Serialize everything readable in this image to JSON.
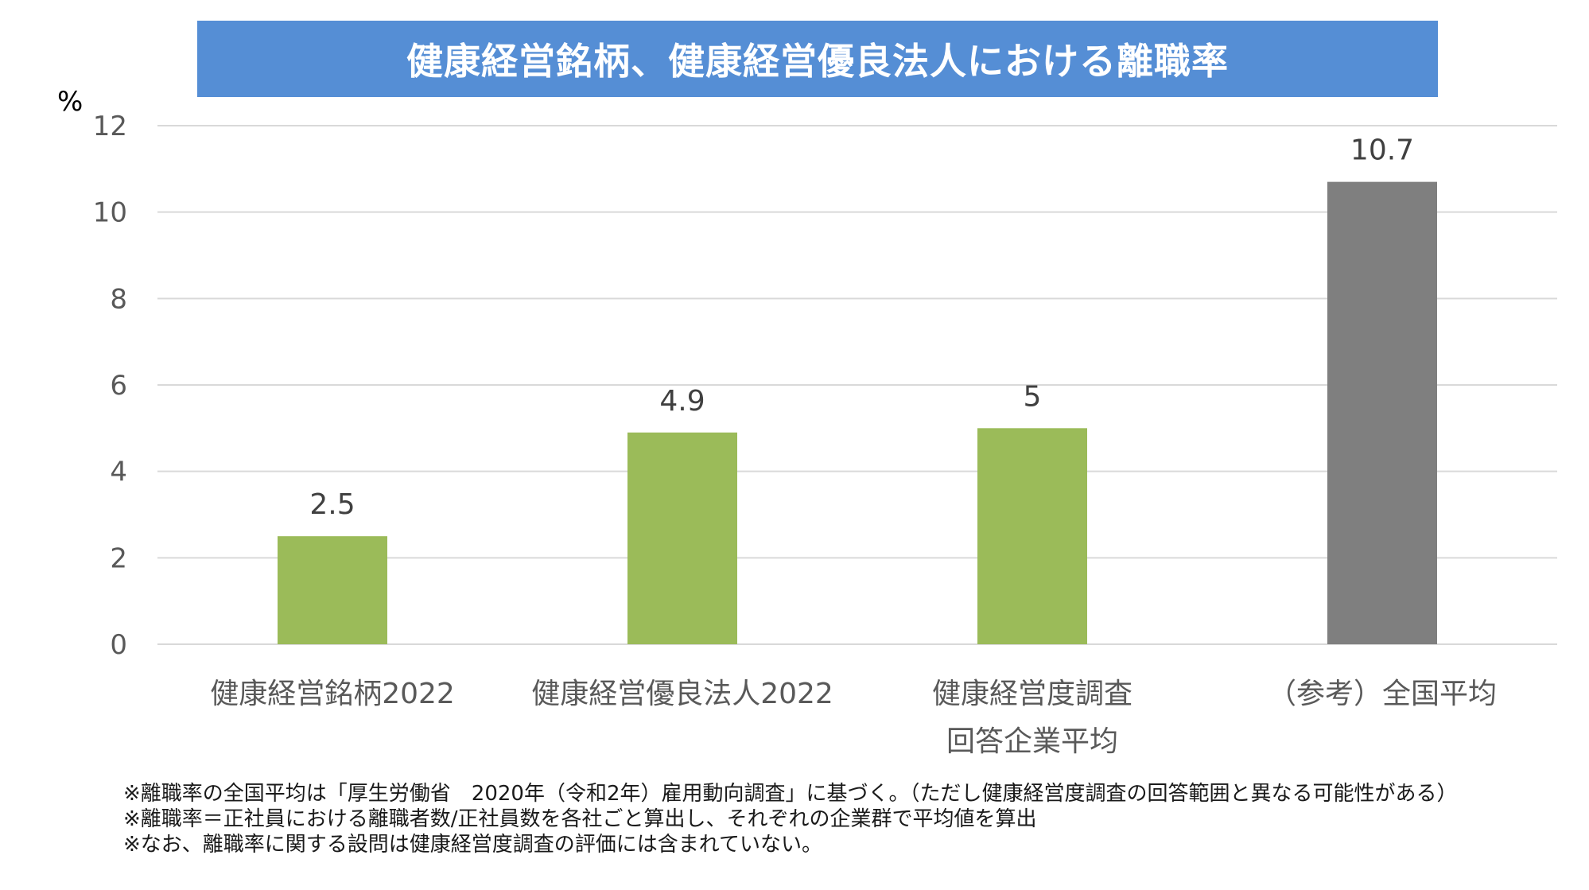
{
  "title": "健康経営銘柄、健康経営優良法人における離職率",
  "unit": "%",
  "colors": {
    "banner": "#558ed5",
    "bar_green": "#9bbb59",
    "bar_gray": "#7f7f7f",
    "grid": "#d9d9d9",
    "axis_text": "#595959"
  },
  "chart_data": {
    "type": "bar",
    "title": "健康経営銘柄、健康経営優良法人における離職率",
    "ylabel": "%",
    "xlabel": "",
    "ylim": [
      0,
      12
    ],
    "yticks": [
      0,
      2,
      4,
      6,
      8,
      10,
      12
    ],
    "grid": true,
    "categories": [
      [
        "健康経営銘柄2022"
      ],
      [
        "健康経営優良法人2022"
      ],
      [
        "健康経営度調査",
        "回答企業平均"
      ],
      [
        "（参考）全国平均"
      ]
    ],
    "values": [
      2.5,
      4.9,
      5,
      10.7
    ],
    "value_labels": [
      "2.5",
      "4.9",
      "5",
      "10.7"
    ],
    "bar_colors": [
      "#9bbb59",
      "#9bbb59",
      "#9bbb59",
      "#7f7f7f"
    ]
  },
  "footnotes": [
    "※離職率の全国平均は「厚生労働省　2020年（令和2年）雇用動向調査」に基づく。（ただし健康経営度調査の回答範囲と異なる可能性がある）",
    "※離職率＝正社員における離職者数/正社員数を各社ごと算出し、それぞれの企業群で平均値を算出",
    "※なお、離職率に関する設問は健康経営度調査の評価には含まれていない。"
  ]
}
